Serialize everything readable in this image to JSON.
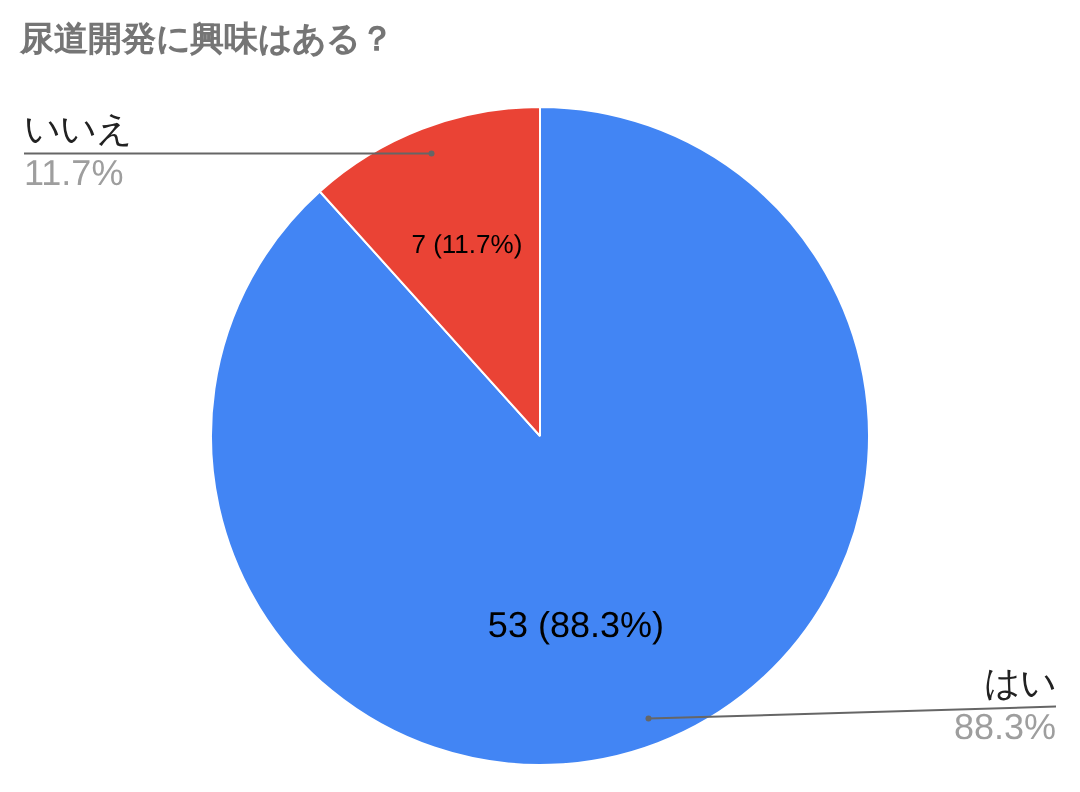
{
  "chart_data": {
    "type": "pie",
    "title": "尿道開発に興味はある？",
    "categories": [
      "はい",
      "いいえ"
    ],
    "values": [
      53,
      7
    ],
    "colors": [
      "#4285f4",
      "#ea4335"
    ],
    "value_labels": [
      "53 (88.3%)",
      "7 (11.7%)"
    ],
    "annotations": [
      "88.3%",
      "11.7%"
    ],
    "legend": false
  }
}
